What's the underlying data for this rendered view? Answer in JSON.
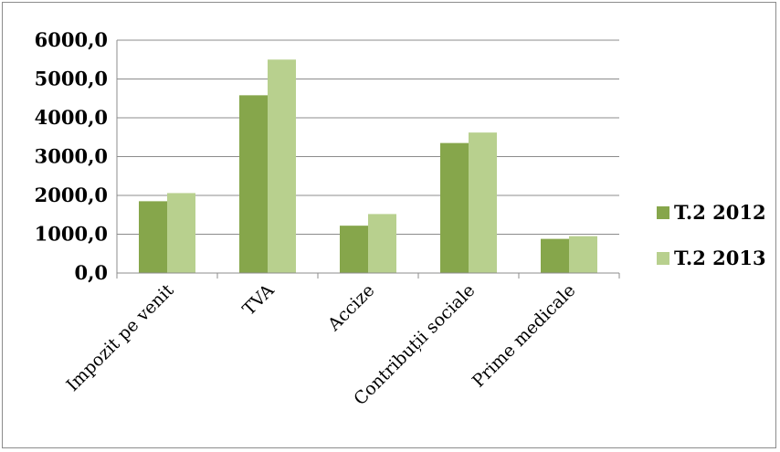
{
  "chart_data": {
    "type": "bar",
    "categories": [
      "Impozit pe venit",
      "TVA",
      "Accize",
      "Contribuții sociale",
      "Prime medicale"
    ],
    "series": [
      {
        "name": "T.2 2012",
        "color": "#86a64b",
        "values": [
          1850,
          4580,
          1220,
          3350,
          880
        ]
      },
      {
        "name": "T.2 2013",
        "color": "#b8d08e",
        "values": [
          2060,
          5500,
          1520,
          3620,
          950
        ]
      }
    ],
    "ylim": [
      0,
      6000
    ],
    "yticks": [
      0,
      1000,
      2000,
      3000,
      4000,
      5000,
      6000
    ],
    "ytick_labels": [
      "0,0",
      "1000,0",
      "2000,0",
      "3000,0",
      "4000,0",
      "5000,0",
      "6000,0"
    ],
    "grid": true,
    "gridline_color": "#8c8c8c",
    "legend_position": "right",
    "title": "",
    "xlabel": "",
    "ylabel": ""
  }
}
